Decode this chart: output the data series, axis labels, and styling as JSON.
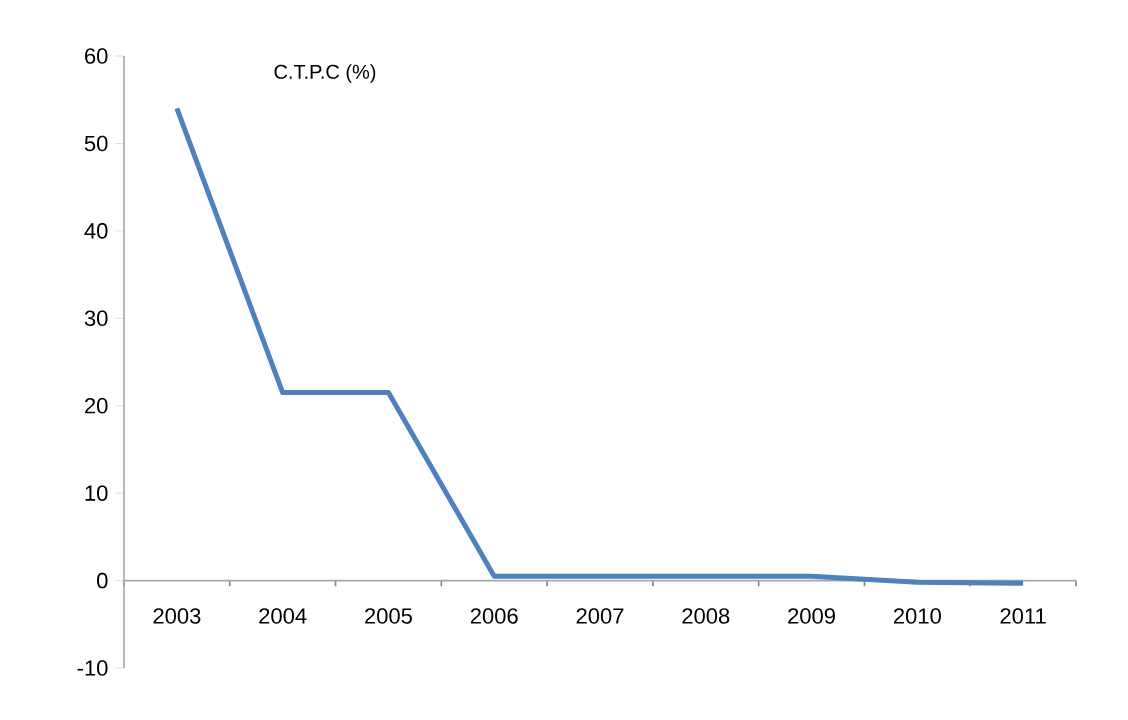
{
  "chart_data": {
    "type": "line",
    "title": "C.T.P.C (%)",
    "categories": [
      "2003",
      "2004",
      "2005",
      "2006",
      "2007",
      "2008",
      "2009",
      "2010",
      "2011"
    ],
    "series": [
      {
        "color": "#4f81bd",
        "values": [
          54,
          21.5,
          21.5,
          0.5,
          0.5,
          0.5,
          0.5,
          -0.2,
          -0.3
        ]
      }
    ],
    "ylim": [
      -10,
      60
    ],
    "yticks": [
      -10,
      0,
      10,
      20,
      30,
      40,
      50,
      60
    ],
    "grid": false,
    "legend": false,
    "marker": "none",
    "line_style": "solid"
  }
}
